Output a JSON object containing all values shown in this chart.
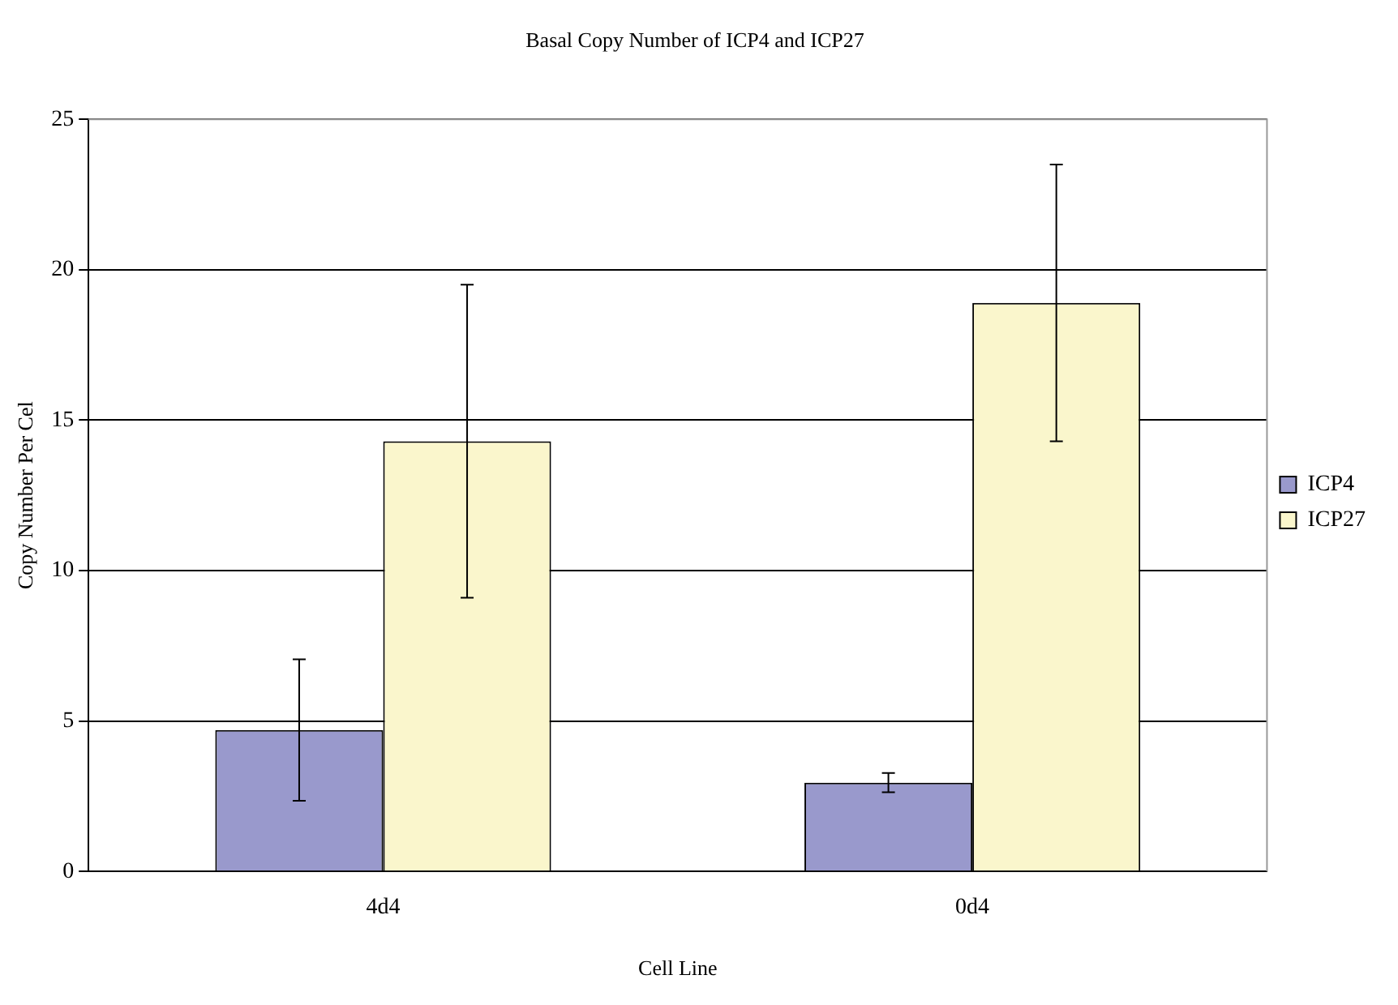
{
  "chart_data": {
    "type": "bar",
    "title": "Basal Copy Number of ICP4 and ICP27",
    "xlabel": "Cell Line",
    "ylabel": "Copy Number Per Cel",
    "categories": [
      "4d4",
      "0d4"
    ],
    "series": [
      {
        "name": "ICP4",
        "color": "#9999cc",
        "values": [
          4.7,
          2.95
        ],
        "errors": [
          2.35,
          0.32
        ]
      },
      {
        "name": "ICP27",
        "color": "#faf6cc",
        "values": [
          14.3,
          18.9
        ],
        "errors": [
          5.2,
          4.6
        ]
      }
    ],
    "ylim": [
      0,
      25
    ],
    "yticks": [
      0,
      5,
      10,
      15,
      20,
      25
    ],
    "grid": "y",
    "legend": "right"
  }
}
